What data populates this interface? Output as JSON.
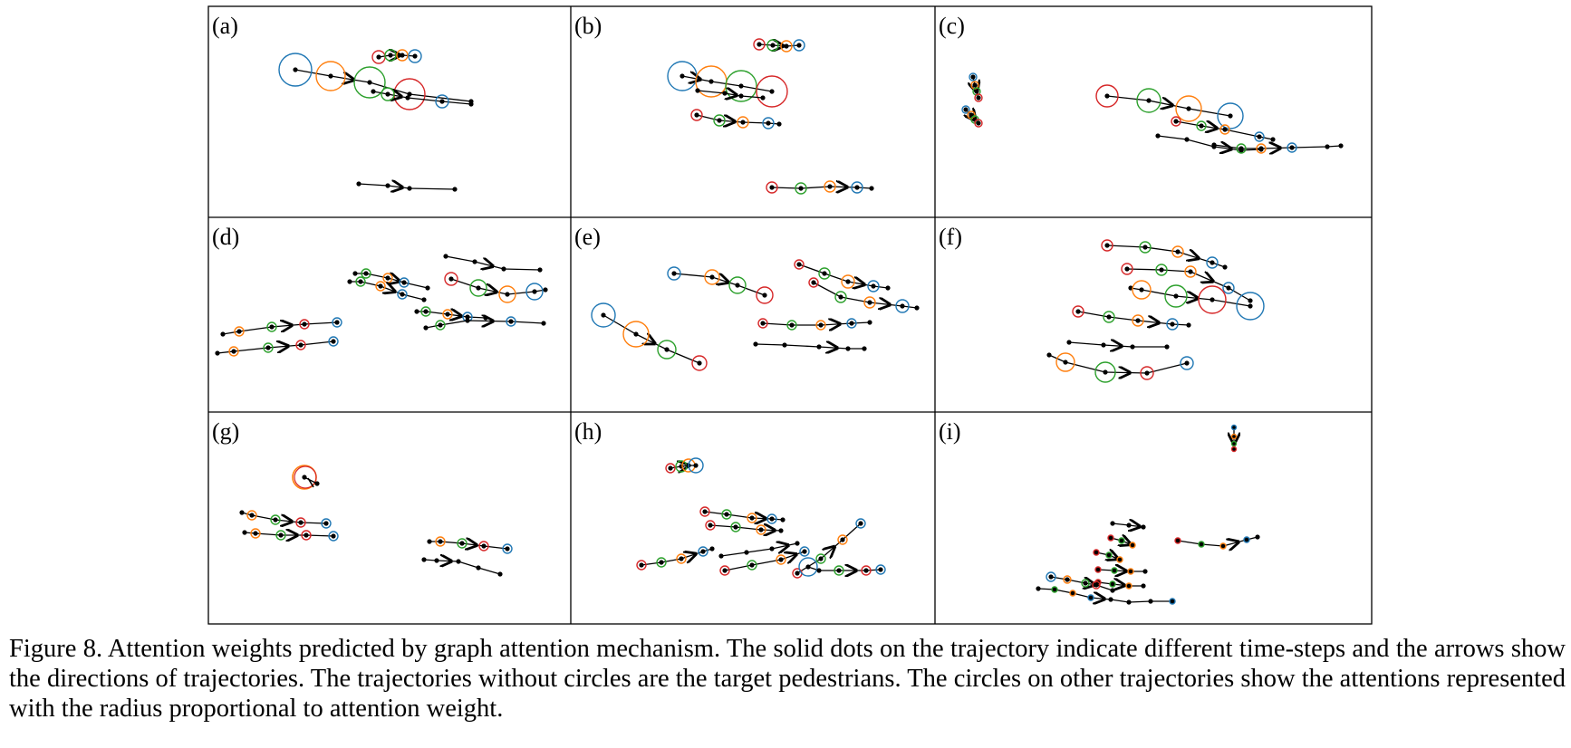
{
  "figure": {
    "caption": "Figure 8. Attention weights predicted by graph attention mechanism. The solid dots on the trajectory indicate different time-steps and the arrows show the directions of trajectories. The trajectories without circles are the target pedestrians. The circles on other trajectories show the attentions represented with the radius proportional to attention weight.",
    "panel_labels": [
      "(a)",
      "(b)",
      "(c)",
      "(d)",
      "(e)",
      "(f)",
      "(g)",
      "(h)",
      "(i)"
    ],
    "colors": {
      "circle_order": [
        "#1f77b4",
        "#ff7f0e",
        "#2ca02c",
        "#d62728"
      ],
      "trajectory": "#000000",
      "frame": "#000000"
    }
  }
}
